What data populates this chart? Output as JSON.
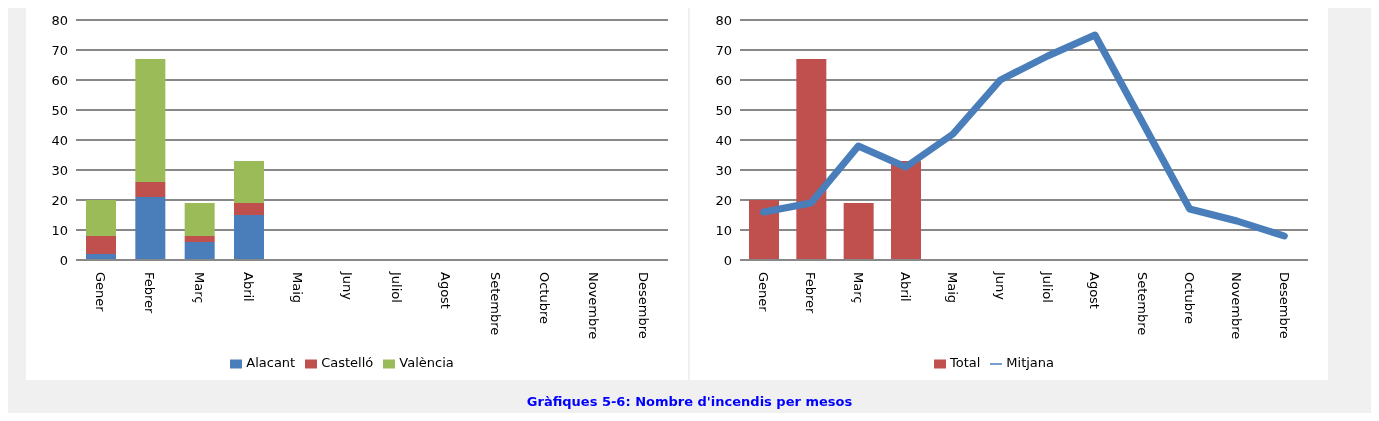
{
  "chart_data": [
    {
      "type": "bar",
      "stacked": true,
      "categories": [
        "Gener",
        "Febrer",
        "Març",
        "Abril",
        "Maig",
        "Juny",
        "Juliol",
        "Agost",
        "Setembre",
        "Octubre",
        "Novembre",
        "Desembre"
      ],
      "ylim": [
        0,
        80
      ],
      "yticks": [
        0,
        10,
        20,
        30,
        40,
        50,
        60,
        70,
        80
      ],
      "grid": "y",
      "legend": "bottom",
      "series": [
        {
          "name": "Alacant",
          "color": "#4a7ebb",
          "values": [
            2,
            21,
            6,
            15,
            null,
            null,
            null,
            null,
            null,
            null,
            null,
            null
          ]
        },
        {
          "name": "Castelló",
          "color": "#c0504d",
          "values": [
            6,
            5,
            2,
            4,
            null,
            null,
            null,
            null,
            null,
            null,
            null,
            null
          ]
        },
        {
          "name": "València",
          "color": "#9bbb59",
          "values": [
            12,
            41,
            11,
            14,
            null,
            null,
            null,
            null,
            null,
            null,
            null,
            null
          ]
        }
      ]
    },
    {
      "type": "bar",
      "categories": [
        "Gener",
        "Febrer",
        "Març",
        "Abril",
        "Maig",
        "Juny",
        "Juliol",
        "Agost",
        "Setembre",
        "Octubre",
        "Novembre",
        "Desembre"
      ],
      "ylim": [
        0,
        80
      ],
      "yticks": [
        0,
        10,
        20,
        30,
        40,
        50,
        60,
        70,
        80
      ],
      "grid": "y",
      "legend": "bottom",
      "annotations": [
        "Gràfiques 5-6: Nombre d'incendis per mesos"
      ],
      "series": [
        {
          "name": "Total",
          "color": "#c0504d",
          "values": [
            20,
            67,
            19,
            33,
            null,
            null,
            null,
            null,
            null,
            null,
            null,
            null
          ]
        },
        {
          "name": "Mitjana",
          "type": "line",
          "color": "#4a7ebb",
          "values": [
            16,
            19,
            38,
            31,
            42,
            60,
            68,
            75,
            46,
            17,
            13,
            8
          ]
        }
      ]
    }
  ]
}
